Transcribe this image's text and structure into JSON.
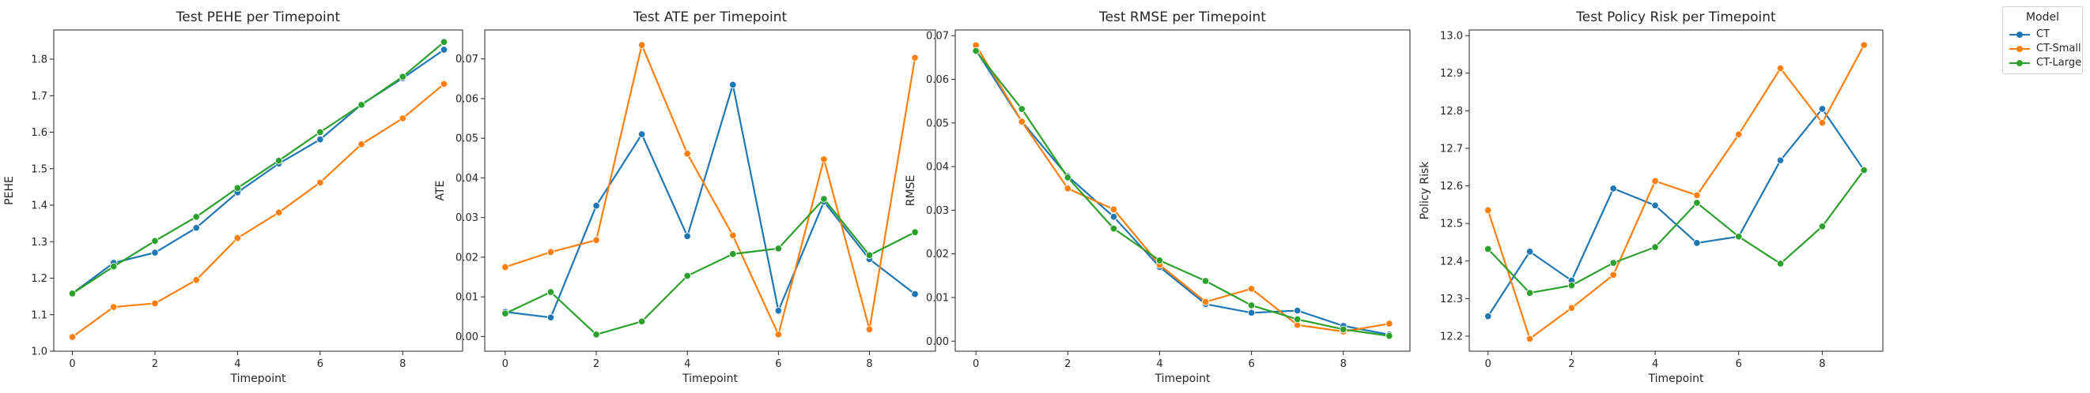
{
  "chart_data": [
    {
      "type": "line",
      "title": "Test PEHE per Timepoint",
      "xlabel": "Timepoint",
      "ylabel": "PEHE",
      "x": [
        0,
        1,
        2,
        3,
        4,
        5,
        6,
        7,
        8,
        9
      ],
      "xticks": [
        "0",
        "2",
        "4",
        "6",
        "8"
      ],
      "yticks": [
        "1.0",
        "1.1",
        "1.2",
        "1.3",
        "1.4",
        "1.5",
        "1.6",
        "1.7",
        "1.8"
      ],
      "xlim": [
        -0.45,
        9.45
      ],
      "ylim": [
        1.0,
        1.88
      ],
      "series": [
        {
          "name": "CT",
          "color": "#1f77b4",
          "values": [
            1.158,
            1.242,
            1.27,
            1.338,
            1.435,
            1.514,
            1.58,
            1.676,
            1.748,
            1.826
          ]
        },
        {
          "name": "CT-Small",
          "color": "#ff7f0e",
          "values": [
            1.039,
            1.121,
            1.131,
            1.195,
            1.31,
            1.38,
            1.462,
            1.567,
            1.638,
            1.732
          ]
        },
        {
          "name": "CT-Large",
          "color": "#2ca02c",
          "values": [
            1.158,
            1.232,
            1.302,
            1.368,
            1.447,
            1.522,
            1.6,
            1.675,
            1.752,
            1.847
          ]
        }
      ]
    },
    {
      "type": "line",
      "title": "Test ATE per Timepoint",
      "xlabel": "Timepoint",
      "ylabel": "ATE",
      "x": [
        0,
        1,
        2,
        3,
        4,
        5,
        6,
        7,
        8,
        9
      ],
      "xticks": [
        "0",
        "2",
        "4",
        "6",
        "8"
      ],
      "yticks": [
        "0.00",
        "0.01",
        "0.02",
        "0.03",
        "0.04",
        "0.05",
        "0.06",
        "0.07"
      ],
      "xlim": [
        -0.45,
        9.45
      ],
      "ylim": [
        -0.0037,
        0.0773
      ],
      "series": [
        {
          "name": "CT",
          "color": "#1f77b4",
          "values": [
            0.0062,
            0.0048,
            0.033,
            0.051,
            0.0253,
            0.0635,
            0.0065,
            0.034,
            0.0195,
            0.0107
          ]
        },
        {
          "name": "CT-Small",
          "color": "#ff7f0e",
          "values": [
            0.0175,
            0.0213,
            0.0243,
            0.0735,
            0.0461,
            0.0255,
            0.0005,
            0.0447,
            0.0018,
            0.0703
          ]
        },
        {
          "name": "CT-Large",
          "color": "#2ca02c",
          "values": [
            0.0058,
            0.0112,
            0.0005,
            0.0038,
            0.0153,
            0.0208,
            0.0222,
            0.0347,
            0.0205,
            0.0263
          ]
        }
      ]
    },
    {
      "type": "line",
      "title": "Test RMSE per Timepoint",
      "xlabel": "Timepoint",
      "ylabel": "RMSE",
      "x": [
        0,
        1,
        2,
        3,
        4,
        5,
        6,
        7,
        8,
        9
      ],
      "xticks": [
        "0",
        "2",
        "4",
        "6",
        "8"
      ],
      "yticks": [
        "0.00",
        "0.01",
        "0.02",
        "0.03",
        "0.04",
        "0.05",
        "0.06",
        "0.07"
      ],
      "xlim": [
        -0.45,
        9.45
      ],
      "ylim": [
        -0.0023,
        0.0713
      ],
      "series": [
        {
          "name": "CT",
          "color": "#1f77b4",
          "values": [
            0.0667,
            0.0503,
            0.0378,
            0.0285,
            0.017,
            0.0085,
            0.0065,
            0.007,
            0.0035,
            0.0015
          ]
        },
        {
          "name": "CT-Small",
          "color": "#ff7f0e",
          "values": [
            0.0678,
            0.0503,
            0.035,
            0.0302,
            0.0175,
            0.009,
            0.012,
            0.0037,
            0.0022,
            0.004
          ]
        },
        {
          "name": "CT-Large",
          "color": "#2ca02c",
          "values": [
            0.0665,
            0.0532,
            0.0375,
            0.0258,
            0.0185,
            0.0138,
            0.0082,
            0.005,
            0.0027,
            0.0012
          ]
        }
      ]
    },
    {
      "type": "line",
      "title": "Test Policy Risk per Timepoint",
      "xlabel": "Timepoint",
      "ylabel": "Policy Risk",
      "x": [
        0,
        1,
        2,
        3,
        4,
        5,
        6,
        7,
        8,
        9
      ],
      "xticks": [
        "0",
        "2",
        "4",
        "6",
        "8"
      ],
      "yticks": [
        "12.2",
        "12.3",
        "12.4",
        "12.5",
        "12.6",
        "12.7",
        "12.8",
        "12.9",
        "13.0"
      ],
      "xlim": [
        -0.45,
        9.45
      ],
      "ylim": [
        12.16,
        13.015
      ],
      "series": [
        {
          "name": "CT",
          "color": "#1f77b4",
          "values": [
            12.253,
            12.425,
            12.348,
            12.593,
            12.548,
            12.448,
            12.465,
            12.668,
            12.805,
            12.642
          ]
        },
        {
          "name": "CT-Small",
          "color": "#ff7f0e",
          "values": [
            12.535,
            12.193,
            12.275,
            12.363,
            12.613,
            12.575,
            12.737,
            12.913,
            12.768,
            12.975
          ]
        },
        {
          "name": "CT-Large",
          "color": "#2ca02c",
          "values": [
            12.432,
            12.315,
            12.335,
            12.395,
            12.437,
            12.555,
            12.465,
            12.393,
            12.492,
            12.642
          ]
        }
      ]
    }
  ],
  "legend": {
    "title": "Model",
    "placement": "outside-right-top",
    "items": [
      {
        "label": "CT",
        "color": "#1f77b4"
      },
      {
        "label": "CT-Small",
        "color": "#ff7f0e"
      },
      {
        "label": "CT-Large",
        "color": "#2ca02c"
      }
    ]
  }
}
